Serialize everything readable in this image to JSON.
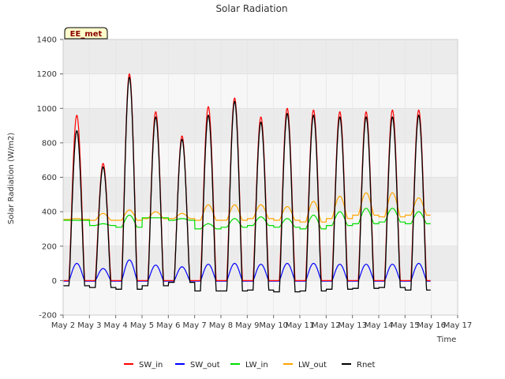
{
  "chart_data": {
    "type": "line",
    "title": "Solar Radiation",
    "xlabel": "Time",
    "ylabel": "Solar Radiation (W/m2)",
    "badge": "EE_met",
    "ylim": [
      -200,
      1400
    ],
    "yticks": [
      -200,
      0,
      200,
      400,
      600,
      800,
      1000,
      1200,
      1400
    ],
    "xlim": [
      2,
      17
    ],
    "xticks": [
      {
        "v": 2,
        "label": "May 2"
      },
      {
        "v": 3,
        "label": "May 3"
      },
      {
        "v": 4,
        "label": "May 4"
      },
      {
        "v": 5,
        "label": "May 5"
      },
      {
        "v": 6,
        "label": "May 6"
      },
      {
        "v": 7,
        "label": "May 7"
      },
      {
        "v": 8,
        "label": "May 8"
      },
      {
        "v": 9,
        "label": "May 9"
      },
      {
        "v": 10,
        "label": "May 10"
      },
      {
        "v": 11,
        "label": "May 11"
      },
      {
        "v": 12,
        "label": "May 12"
      },
      {
        "v": 13,
        "label": "May 13"
      },
      {
        "v": 14,
        "label": "May 14"
      },
      {
        "v": 15,
        "label": "May 15"
      },
      {
        "v": 16,
        "label": "May 16"
      },
      {
        "v": 17,
        "label": "May 17"
      }
    ],
    "grid": true,
    "legend_position": "bottom",
    "days": [
      2,
      3,
      4,
      5,
      6,
      7,
      8,
      9,
      10,
      11,
      12,
      13,
      14,
      15
    ],
    "series": [
      {
        "name": "SW_in",
        "color": "#ff0000",
        "peaks": [
          960,
          680,
          1200,
          980,
          840,
          1010,
          1060,
          950,
          1000,
          990,
          980,
          980,
          990,
          990
        ]
      },
      {
        "name": "SW_out",
        "color": "#0000ff",
        "peaks": [
          100,
          70,
          120,
          90,
          80,
          95,
          100,
          95,
          100,
          100,
          95,
          95,
          95,
          100
        ]
      },
      {
        "name": "LW_in",
        "color": "#00dd00",
        "night": [
          350,
          320,
          310,
          365,
          350,
          300,
          310,
          320,
          310,
          300,
          320,
          330,
          340,
          330
        ],
        "day": [
          350,
          330,
          380,
          365,
          360,
          330,
          360,
          370,
          360,
          380,
          400,
          420,
          420,
          400
        ]
      },
      {
        "name": "LW_out",
        "color": "#ffa500",
        "night": [
          355,
          350,
          350,
          360,
          360,
          350,
          350,
          360,
          350,
          340,
          360,
          380,
          370,
          380
        ],
        "day": [
          360,
          390,
          410,
          400,
          390,
          440,
          440,
          440,
          430,
          460,
          490,
          510,
          510,
          480
        ]
      },
      {
        "name": "Rnet",
        "color": "#000000",
        "peaks": [
          870,
          660,
          1180,
          950,
          820,
          960,
          1040,
          920,
          970,
          960,
          950,
          950,
          950,
          960
        ],
        "night": [
          -30,
          -40,
          -50,
          -30,
          -10,
          -60,
          -60,
          -55,
          -65,
          -60,
          -50,
          -45,
          -40,
          -55
        ]
      }
    ]
  }
}
